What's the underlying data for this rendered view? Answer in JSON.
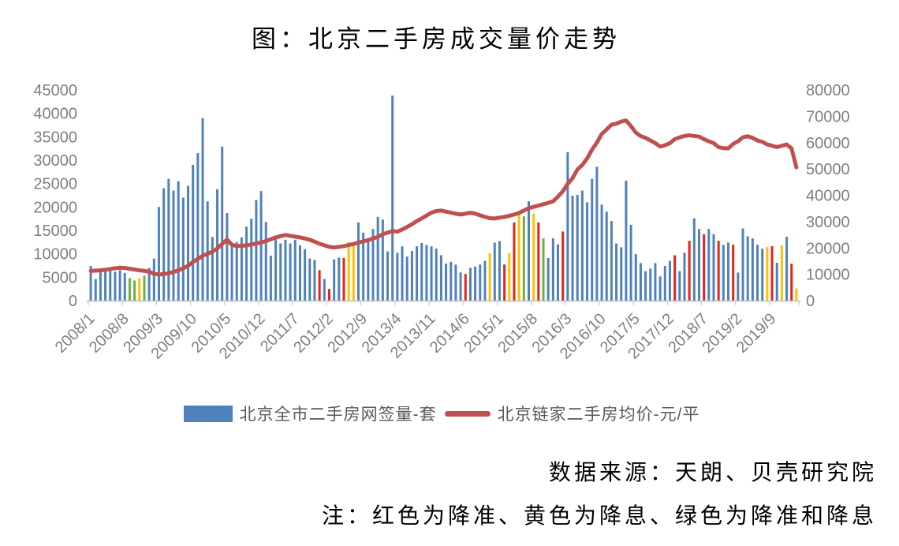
{
  "page": {
    "title": "图：北京二手房成交量价走势"
  },
  "captions": {
    "source": "数据来源：天朗、贝壳研究院",
    "note": "注：红色为降准、黄色为降息、绿色为降准和降息"
  },
  "legend": {
    "volume_label": "北京全市二手房网签量-套",
    "price_label": "北京链家二手房均价-元/平"
  },
  "chart_data": {
    "type": "bar",
    "title": "图：北京二手房成交量价走势",
    "grid": false,
    "legend_position": "bottom",
    "xlabel": "",
    "ylabel_left": "北京全市二手房网签量-套",
    "ylabel_right": "北京链家二手房均价-元/平",
    "left_axis": {
      "min": 0,
      "max": 45000,
      "step": 5000
    },
    "right_axis": {
      "min": 0,
      "max": 80000,
      "step": 10000
    },
    "x_tick_every": 7,
    "axis_text_color": "#7f7f7f",
    "event_colors": {
      "降准": "#E1251B",
      "降息": "#FFC000",
      "降准和降息": "#70AD47"
    },
    "events": {
      "2008/9": "降准和降息",
      "2008/10": "降准和降息",
      "2008/11": "降息",
      "2008/12": "降准和降息",
      "2011/12": "降准",
      "2012/2": "降准",
      "2012/5": "降准",
      "2012/6": "降息",
      "2012/7": "降息",
      "2014/6": "降准",
      "2014/11": "降息",
      "2015/2": "降准",
      "2015/3": "降息",
      "2015/4": "降准",
      "2015/5": "降息",
      "2015/6": "降准和降息",
      "2015/8": "降息",
      "2015/9": "降准",
      "2015/10": "降准和降息",
      "2016/2": "降准",
      "2018/1": "降准",
      "2018/4": "降准",
      "2018/7": "降准",
      "2018/10": "降准",
      "2019/1": "降准",
      "2019/8": "降息",
      "2019/9": "降准",
      "2019/11": "降息",
      "2020/1": "降准",
      "2020/2": "降息"
    },
    "x": [
      "2008/1",
      "2008/2",
      "2008/3",
      "2008/4",
      "2008/5",
      "2008/6",
      "2008/7",
      "2008/8",
      "2008/9",
      "2008/10",
      "2008/11",
      "2008/12",
      "2009/1",
      "2009/2",
      "2009/3",
      "2009/4",
      "2009/5",
      "2009/6",
      "2009/7",
      "2009/8",
      "2009/9",
      "2009/10",
      "2009/11",
      "2009/12",
      "2010/1",
      "2010/2",
      "2010/3",
      "2010/4",
      "2010/5",
      "2010/6",
      "2010/7",
      "2010/8",
      "2010/9",
      "2010/10",
      "2010/11",
      "2010/12",
      "2011/1",
      "2011/2",
      "2011/3",
      "2011/4",
      "2011/5",
      "2011/6",
      "2011/7",
      "2011/8",
      "2011/9",
      "2011/10",
      "2011/11",
      "2011/12",
      "2012/1",
      "2012/2",
      "2012/3",
      "2012/4",
      "2012/5",
      "2012/6",
      "2012/7",
      "2012/8",
      "2012/9",
      "2012/10",
      "2012/11",
      "2012/12",
      "2013/1",
      "2013/2",
      "2013/3",
      "2013/4",
      "2013/5",
      "2013/6",
      "2013/7",
      "2013/8",
      "2013/9",
      "2013/10",
      "2013/11",
      "2013/12",
      "2014/1",
      "2014/2",
      "2014/3",
      "2014/4",
      "2014/5",
      "2014/6",
      "2014/7",
      "2014/8",
      "2014/9",
      "2014/10",
      "2014/11",
      "2014/12",
      "2015/1",
      "2015/2",
      "2015/3",
      "2015/4",
      "2015/5",
      "2015/6",
      "2015/7",
      "2015/8",
      "2015/9",
      "2015/10",
      "2015/11",
      "2015/12",
      "2016/1",
      "2016/2",
      "2016/3",
      "2016/4",
      "2016/5",
      "2016/6",
      "2016/7",
      "2016/8",
      "2016/9",
      "2016/10",
      "2016/11",
      "2016/12",
      "2017/1",
      "2017/2",
      "2017/3",
      "2017/4",
      "2017/5",
      "2017/6",
      "2017/7",
      "2017/8",
      "2017/9",
      "2017/10",
      "2017/11",
      "2017/12",
      "2018/1",
      "2018/2",
      "2018/3",
      "2018/4",
      "2018/5",
      "2018/6",
      "2018/7",
      "2018/8",
      "2018/9",
      "2018/10",
      "2018/11",
      "2018/12",
      "2019/1",
      "2019/2",
      "2019/3",
      "2019/4",
      "2019/5",
      "2019/6",
      "2019/7",
      "2019/8",
      "2019/9",
      "2019/10",
      "2019/11",
      "2019/12",
      "2020/1",
      "2020/2"
    ],
    "series": [
      {
        "name": "北京全市二手房网签量-套",
        "type": "bar",
        "axis": "left",
        "color": "#4F81BD",
        "values": [
          7400,
          4600,
          6300,
          7000,
          6600,
          6200,
          6500,
          5900,
          4800,
          4300,
          4800,
          5300,
          7000,
          9000,
          20000,
          24000,
          26000,
          23500,
          25500,
          22000,
          24500,
          29000,
          31500,
          39000,
          21200,
          13600,
          23800,
          32900,
          18700,
          11900,
          12500,
          13500,
          15800,
          17500,
          21500,
          23400,
          16800,
          9600,
          13500,
          12200,
          13000,
          12200,
          13000,
          11800,
          11000,
          9000,
          8700,
          6500,
          4600,
          2500,
          8800,
          9200,
          9100,
          12500,
          12300,
          16700,
          14500,
          13300,
          15300,
          17900,
          17300,
          10500,
          43800,
          10200,
          11600,
          9400,
          10600,
          11600,
          12300,
          11900,
          11600,
          11100,
          9700,
          7900,
          8300,
          7700,
          6000,
          5700,
          7000,
          7300,
          7700,
          8500,
          10100,
          12400,
          12700,
          7700,
          10200,
          16700,
          18600,
          18000,
          21200,
          18600,
          16700,
          13300,
          9100,
          13300,
          12000,
          14750,
          31700,
          22400,
          22600,
          23500,
          21000,
          26000,
          28600,
          20500,
          19000,
          17000,
          12200,
          11400,
          25600,
          16200,
          9950,
          8000,
          6300,
          6850,
          8000,
          5160,
          7410,
          8500,
          9680,
          6290,
          10240,
          12770,
          17560,
          15310,
          14180,
          15300,
          14200,
          12770,
          11900,
          12400,
          11930,
          6000,
          15430,
          13740,
          13280,
          11930,
          11080,
          11480,
          11640,
          8090,
          11810,
          13620,
          7870,
          2620
        ]
      },
      {
        "name": "北京链家二手房均价-元/平",
        "type": "line",
        "axis": "right",
        "color": "#C0504D",
        "values": [
          11300,
          11400,
          11500,
          11700,
          12000,
          12300,
          12500,
          12400,
          12100,
          11800,
          11500,
          11300,
          11000,
          10200,
          9900,
          10100,
          10400,
          10900,
          11500,
          12300,
          13200,
          14700,
          15800,
          17000,
          17800,
          18600,
          19800,
          21500,
          23200,
          21200,
          20700,
          20800,
          21000,
          21300,
          21700,
          22100,
          22600,
          23300,
          24000,
          24500,
          24900,
          24600,
          24300,
          24000,
          23600,
          23100,
          22400,
          21600,
          21000,
          20400,
          20200,
          20400,
          20700,
          21100,
          21500,
          22000,
          22500,
          23000,
          23600,
          24200,
          25200,
          25800,
          26400,
          26200,
          27000,
          28000,
          29000,
          30200,
          31200,
          32300,
          33400,
          34000,
          34200,
          33800,
          33400,
          33000,
          32700,
          33000,
          33400,
          33000,
          32400,
          31800,
          31300,
          31200,
          31500,
          31800,
          32200,
          32700,
          33300,
          34200,
          35100,
          35600,
          36100,
          36600,
          37100,
          37700,
          39500,
          41500,
          44300,
          46500,
          49800,
          51500,
          54000,
          57300,
          60000,
          63300,
          65000,
          66800,
          67200,
          68000,
          68400,
          66300,
          63800,
          62500,
          61800,
          60800,
          59800,
          58500,
          59000,
          59800,
          61300,
          62000,
          62500,
          62800,
          62500,
          62300,
          61300,
          60500,
          59800,
          58300,
          57900,
          57800,
          59500,
          60500,
          62000,
          62400,
          61800,
          60800,
          60300,
          59300,
          58800,
          58300,
          58800,
          59300,
          57800,
          50600
        ]
      }
    ]
  }
}
